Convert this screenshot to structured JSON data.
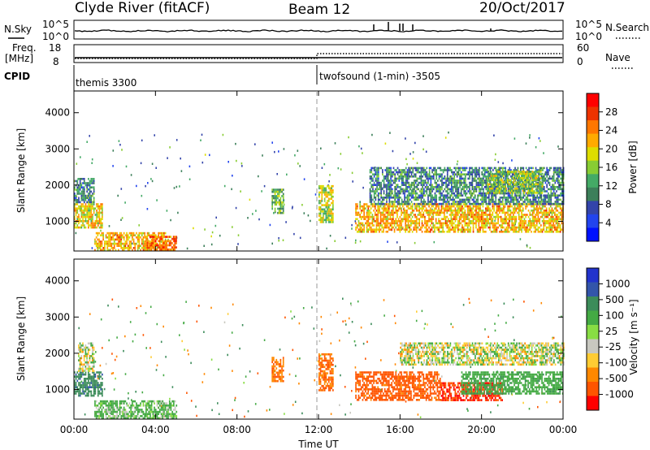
{
  "header": {
    "station": "Clyde River (fitACF)",
    "beam": "Beam 12",
    "date": "20/Oct/2017"
  },
  "summary_panels": {
    "nsky_label": "N.Sky",
    "nsky_ticks": [
      "10^5",
      "10^0"
    ],
    "nsearch_label": "N.Search",
    "nsearch_ticks": [
      "10^5",
      "10^0"
    ],
    "freq_label": "Freq.",
    "freq_unit": "[MHz]",
    "freq_ticks": [
      "18",
      "8"
    ],
    "nave_label": "Nave",
    "nave_ticks": [
      "60",
      "0"
    ],
    "cpid_label": "CPID",
    "cpid_modes": [
      {
        "name": "themis 3300",
        "start_hour": 0
      },
      {
        "name": "twofsound (1-min) -3505",
        "start_hour": 12
      }
    ]
  },
  "chart_data": [
    {
      "type": "heatmap",
      "panel": "power",
      "ylabel": "Slant Range [km]",
      "xlabel": "Time UT",
      "xlim": [
        0,
        24
      ],
      "ylim": [
        180,
        4600
      ],
      "x_ticks": [
        "00:00",
        "04:00",
        "08:00",
        "12:00",
        "16:00",
        "20:00",
        "00:00"
      ],
      "y_ticks": [
        1000,
        2000,
        3000,
        4000
      ],
      "colorbar": {
        "label": "Power [dB]",
        "ticks": [
          "28",
          "24",
          "20",
          "16",
          "12",
          "8",
          "4"
        ],
        "colors": [
          "#ff0000",
          "#ee3300",
          "#ff7700",
          "#ffaa00",
          "#dddd00",
          "#88cc33",
          "#44aa66",
          "#3c7f5a",
          "#3344aa",
          "#2244ee",
          "#0011ff"
        ]
      },
      "regions": [
        {
          "t0": 0.0,
          "t1": 1.4,
          "r0": 850,
          "r1": 1500,
          "level": 20
        },
        {
          "t0": 0.0,
          "t1": 1.0,
          "r0": 1500,
          "r1": 2200,
          "level": 10
        },
        {
          "t0": 1.0,
          "t1": 4.5,
          "r0": 200,
          "r1": 700,
          "level": 22
        },
        {
          "t0": 3.5,
          "t1": 5.0,
          "r0": 200,
          "r1": 600,
          "level": 26
        },
        {
          "t0": 9.7,
          "t1": 10.3,
          "r0": 1200,
          "r1": 1900,
          "level": 14
        },
        {
          "t0": 12.0,
          "t1": 12.7,
          "r0": 1000,
          "r1": 2000,
          "level": 18
        },
        {
          "t0": 13.8,
          "t1": 24.0,
          "r0": 700,
          "r1": 1500,
          "level": 22
        },
        {
          "t0": 14.5,
          "t1": 24.0,
          "r0": 1500,
          "r1": 2500,
          "level": 10
        },
        {
          "t0": 20.3,
          "t1": 23.0,
          "r0": 1800,
          "r1": 2400,
          "level": 16
        }
      ]
    },
    {
      "type": "heatmap",
      "panel": "velocity",
      "ylabel": "Slant Range [km]",
      "xlabel": "Time UT",
      "xlim": [
        0,
        24
      ],
      "ylim": [
        180,
        4600
      ],
      "x_ticks": [
        "00:00",
        "04:00",
        "08:00",
        "12:00",
        "16:00",
        "20:00",
        "00:00"
      ],
      "y_ticks": [
        1000,
        2000,
        3000,
        4000
      ],
      "colorbar": {
        "label": "Velocity [m s⁻¹]",
        "ticks": [
          "1000",
          "500",
          "100",
          "25",
          "-25",
          "-100",
          "-500",
          "-1000"
        ],
        "colors": [
          "#2233cc",
          "#3355aa",
          "#3c8c5a",
          "#44aa44",
          "#88dd44",
          "#c8c8c0",
          "#ffcc33",
          "#ff8800",
          "#ff5500",
          "#ff0000"
        ]
      },
      "regions": [
        {
          "t0": 0.0,
          "t1": 1.4,
          "r0": 850,
          "r1": 1500,
          "vel": 500
        },
        {
          "t0": 0.2,
          "t1": 1.0,
          "r0": 1500,
          "r1": 2300,
          "vel": 0
        },
        {
          "t0": 1.0,
          "t1": 5.0,
          "r0": 200,
          "r1": 700,
          "vel": 100
        },
        {
          "t0": 9.7,
          "t1": 10.3,
          "r0": 1200,
          "r1": 1900,
          "vel": -300
        },
        {
          "t0": 12.0,
          "t1": 12.7,
          "r0": 1000,
          "r1": 2000,
          "vel": -300
        },
        {
          "t0": 13.8,
          "t1": 18.0,
          "r0": 700,
          "r1": 1500,
          "vel": -400
        },
        {
          "t0": 18.0,
          "t1": 21.0,
          "r0": 700,
          "r1": 1200,
          "vel": -700
        },
        {
          "t0": 19.0,
          "t1": 24.0,
          "r0": 900,
          "r1": 1500,
          "vel": 200
        },
        {
          "t0": 16.0,
          "t1": 24.0,
          "r0": 1700,
          "r1": 2300,
          "vel": 0
        }
      ]
    }
  ]
}
